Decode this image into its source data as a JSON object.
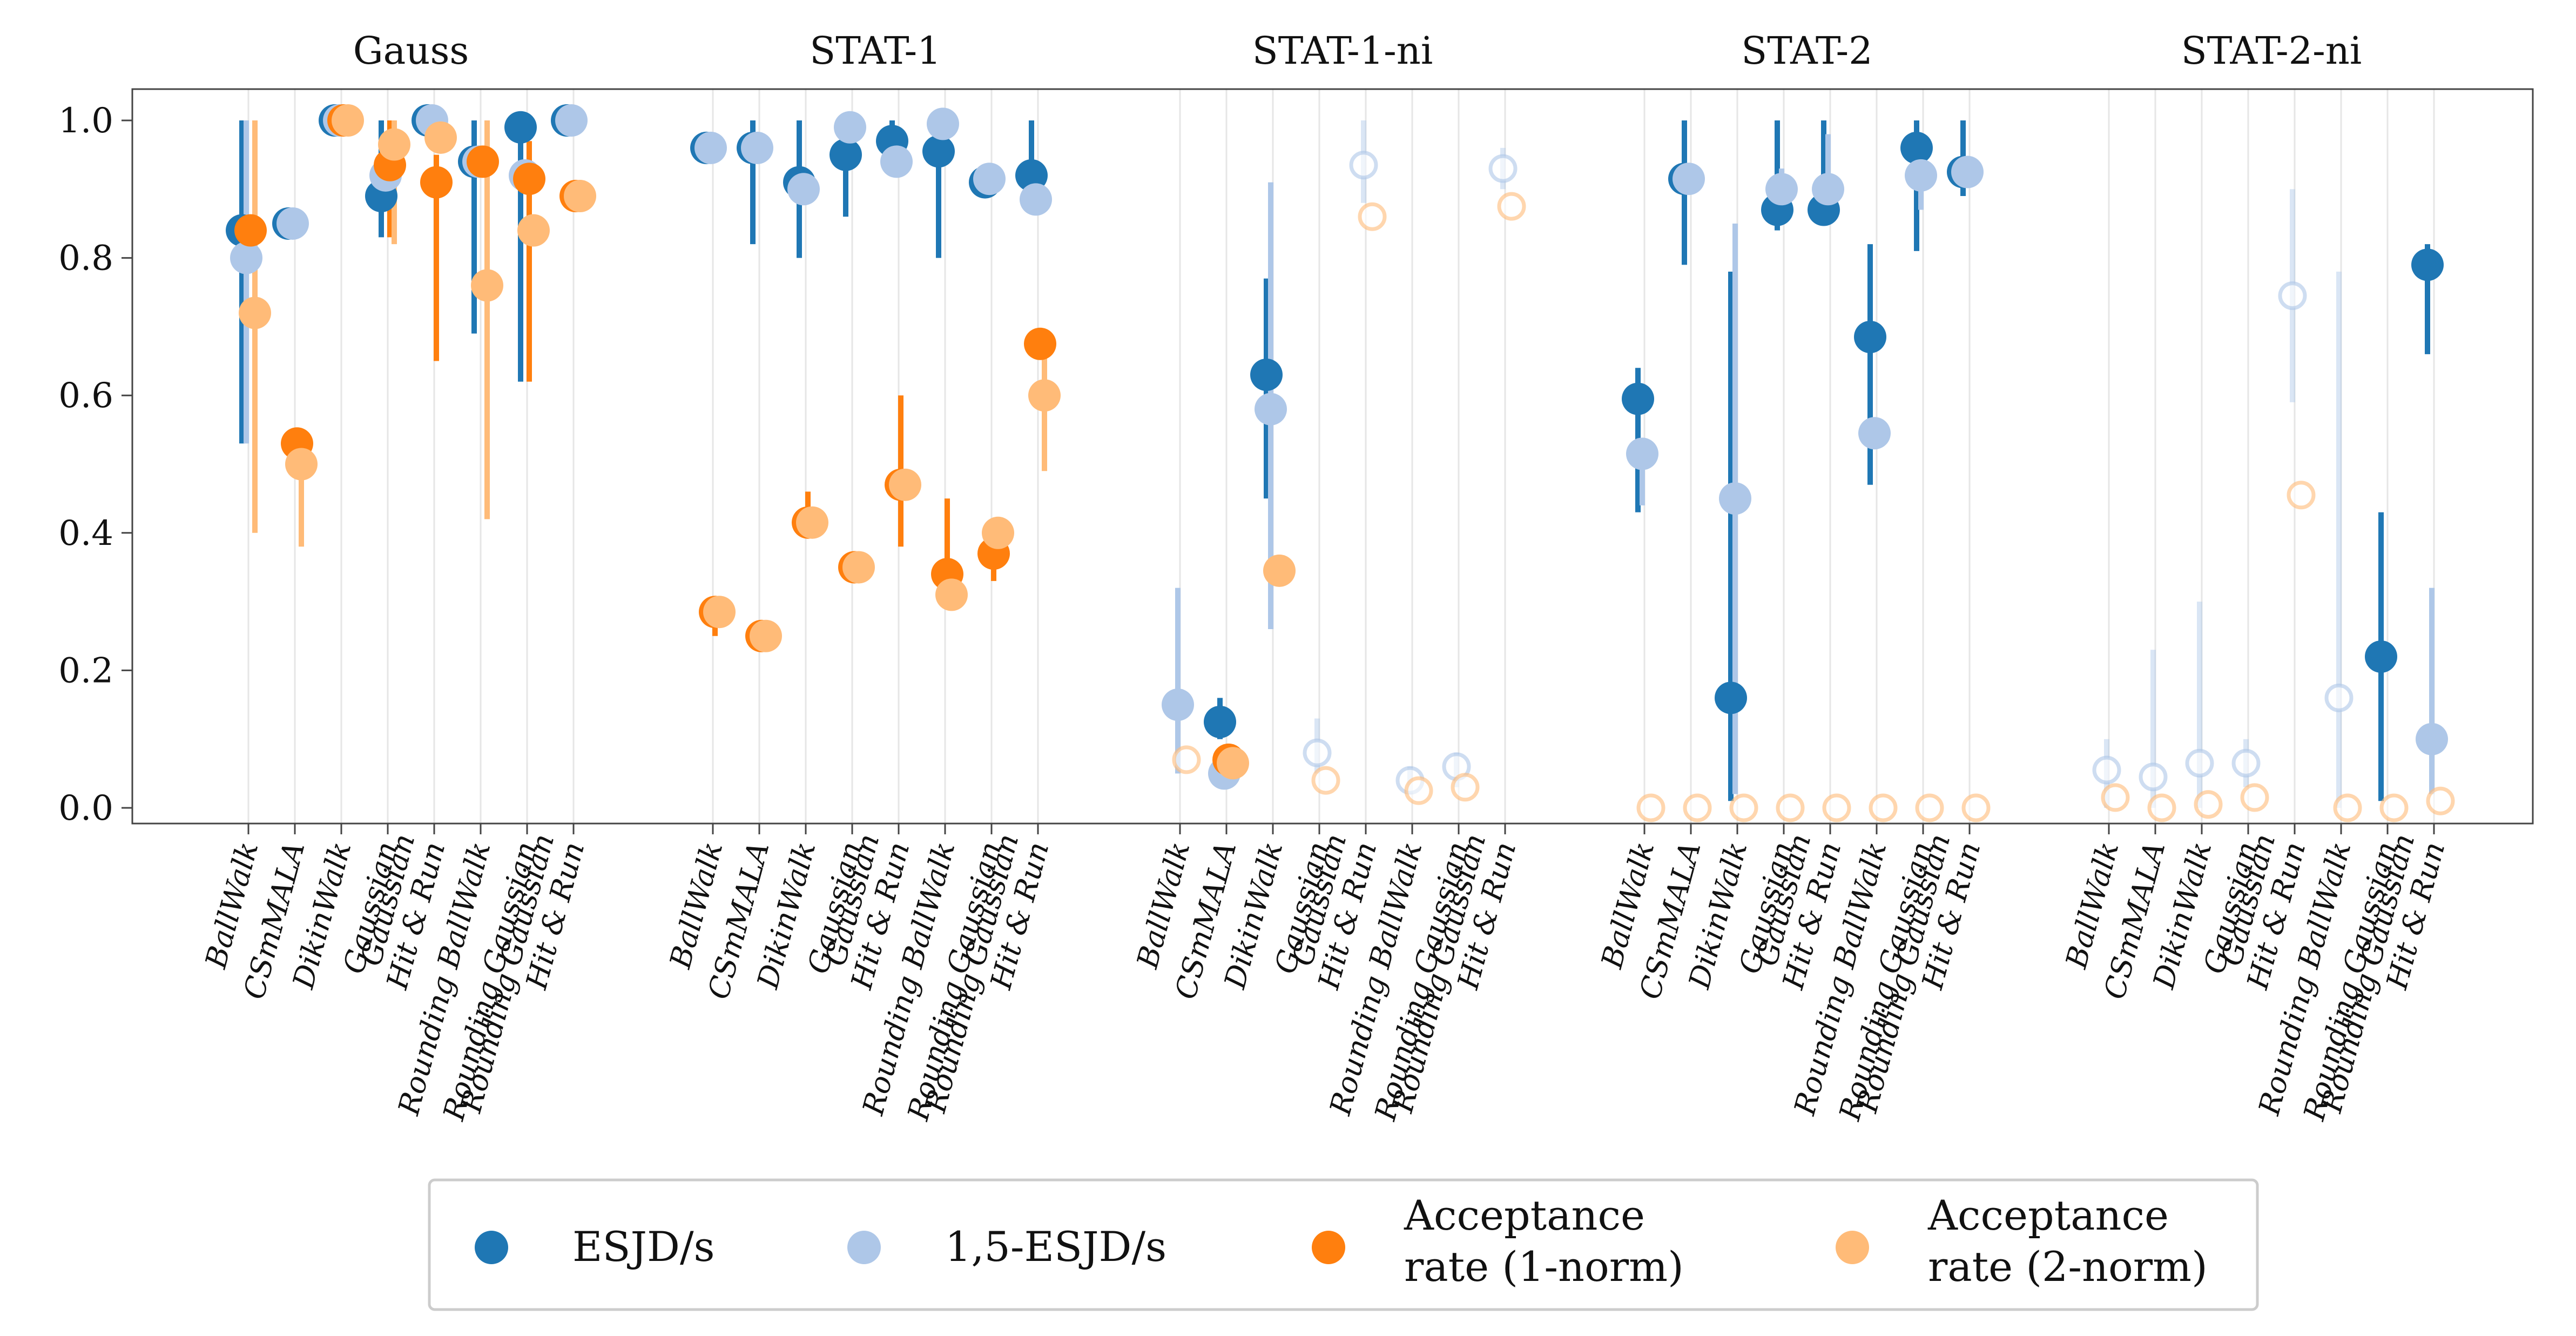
{
  "chart_data": {
    "type": "scatter",
    "ylim": [
      0,
      1.05
    ],
    "yticks": [
      "0.0",
      "0.2",
      "0.4",
      "0.6",
      "0.8",
      "1.0"
    ],
    "ytick_values": [
      0,
      0.2,
      0.4,
      0.6,
      0.8,
      1.0
    ],
    "grid": "vertical lines at each category",
    "groups": [
      "Gauss",
      "STAT-1",
      "STAT-1-ni",
      "STAT-2",
      "STAT-2-ni"
    ],
    "categories": [
      "BallWalk",
      "CSmMALA",
      "DikinWalk",
      "Gaussian",
      "Gaussian\nHit & Run",
      "Rounding BallWalk",
      "Rounding Gaussian",
      "Rounding Gaussian\nHit & Run"
    ],
    "series": [
      {
        "name": "ESJD/s",
        "color": "#1f77b4",
        "values": {
          "Gauss": [
            0.84,
            0.85,
            1.0,
            0.89,
            1.0,
            0.94,
            0.99,
            1.0
          ],
          "STAT-1": [
            0.96,
            0.96,
            0.91,
            0.95,
            0.97,
            0.955,
            0.91,
            0.92
          ],
          "STAT-1-ni": [
            null,
            0.125,
            0.63,
            null,
            null,
            null,
            null,
            null
          ],
          "STAT-2": [
            0.595,
            0.915,
            0.16,
            0.87,
            0.87,
            0.685,
            0.96,
            0.925
          ],
          "STAT-2-ni": [
            null,
            null,
            null,
            null,
            null,
            null,
            0.22,
            0.79
          ]
        },
        "ranges": {
          "Gauss": [
            [
              0.53,
              1.0
            ],
            null,
            null,
            [
              0.83,
              1.0
            ],
            null,
            [
              0.69,
              1.0
            ],
            [
              0.62,
              1.0
            ],
            null
          ],
          "STAT-1": [
            null,
            [
              0.82,
              1.0
            ],
            [
              0.8,
              1.0
            ],
            [
              0.86,
              1.0
            ],
            [
              0.92,
              1.0
            ],
            [
              0.8,
              1.0
            ],
            null,
            [
              0.88,
              1.0
            ]
          ],
          "STAT-1-ni": [
            null,
            [
              0.1,
              0.16
            ],
            [
              0.45,
              0.77
            ],
            null,
            null,
            null,
            null,
            null
          ],
          "STAT-2": [
            [
              0.43,
              0.64
            ],
            [
              0.79,
              1.0
            ],
            [
              0.01,
              0.78
            ],
            [
              0.84,
              1.0
            ],
            [
              0.85,
              1.0
            ],
            [
              0.47,
              0.82
            ],
            [
              0.81,
              1.0
            ],
            [
              0.89,
              1.0
            ]
          ],
          "STAT-2-ni": [
            null,
            null,
            null,
            null,
            null,
            null,
            [
              0.01,
              0.43
            ],
            [
              0.66,
              0.82
            ]
          ]
        }
      },
      {
        "name": "1,5-ESJD/s",
        "color": "#aec7e8",
        "values": {
          "Gauss": [
            0.8,
            0.85,
            1.0,
            0.92,
            1.0,
            0.94,
            0.92,
            1.0
          ],
          "STAT-1": [
            0.96,
            0.96,
            0.9,
            0.99,
            0.94,
            0.995,
            0.915,
            0.885
          ],
          "STAT-1-ni": [
            0.15,
            0.05,
            0.58,
            0.08,
            0.935,
            0.04,
            0.06,
            0.93
          ],
          "STAT-2": [
            0.515,
            0.915,
            0.45,
            0.9,
            0.9,
            0.545,
            0.92,
            0.925
          ],
          "STAT-2-ni": [
            0.055,
            0.045,
            0.065,
            0.065,
            0.745,
            0.16,
            null,
            0.1
          ]
        },
        "hollow": {
          "STAT-1-ni": [
            false,
            false,
            false,
            true,
            true,
            true,
            true,
            true
          ],
          "STAT-2-ni": [
            true,
            true,
            true,
            true,
            true,
            true,
            true,
            false
          ]
        },
        "ranges": {
          "Gauss": [
            [
              0.53,
              1.0
            ],
            null,
            null,
            null,
            null,
            null,
            null,
            null
          ],
          "STAT-1-ni": [
            [
              0.05,
              0.32
            ],
            null,
            [
              0.26,
              0.91
            ],
            [
              0.05,
              0.13
            ],
            [
              0.88,
              1.0
            ],
            [
              0.02,
              0.06
            ],
            [
              0.03,
              0.08
            ],
            [
              0.9,
              0.96
            ]
          ],
          "STAT-2": [
            [
              0.44,
              0.53
            ],
            null,
            [
              0.02,
              0.85
            ],
            [
              0.87,
              0.93
            ],
            [
              0.86,
              0.98
            ],
            null,
            [
              0.87,
              0.97
            ],
            null
          ],
          "STAT-2-ni": [
            [
              0.0,
              0.1
            ],
            [
              0.0,
              0.23
            ],
            [
              0.0,
              0.3
            ],
            [
              0.03,
              0.1
            ],
            [
              0.59,
              0.9
            ],
            [
              0.0,
              0.78
            ],
            null,
            [
              0.02,
              0.32
            ]
          ]
        }
      },
      {
        "name": "Acceptance rate (1-norm)",
        "color": "#ff7f0e",
        "values": {
          "Gauss": [
            0.84,
            0.53,
            1.0,
            0.935,
            0.91,
            0.94,
            0.915,
            0.89
          ],
          "STAT-1": [
            0.285,
            0.25,
            0.415,
            0.35,
            0.47,
            0.34,
            0.37,
            0.675
          ],
          "STAT-1-ni": [
            null,
            0.07,
            null,
            null,
            null,
            null,
            null,
            null
          ],
          "STAT-2": [],
          "STAT-2-ni": []
        },
        "ranges": {
          "Gauss": [
            null,
            null,
            null,
            [
              0.83,
              1.0
            ],
            [
              0.65,
              0.95
            ],
            null,
            [
              0.62,
              0.97
            ],
            null
          ],
          "STAT-1": [
            [
              0.25,
              0.3
            ],
            null,
            [
              0.4,
              0.46
            ],
            null,
            [
              0.38,
              0.6
            ],
            [
              0.32,
              0.45
            ],
            [
              0.33,
              0.4
            ],
            null
          ]
        }
      },
      {
        "name": "Acceptance rate (2-norm)",
        "color": "#ffbb78",
        "values": {
          "Gauss": [
            0.72,
            0.5,
            1.0,
            0.965,
            0.975,
            0.76,
            0.84,
            0.89
          ],
          "STAT-1": [
            0.285,
            0.25,
            0.415,
            0.35,
            0.47,
            0.31,
            0.4,
            0.6
          ],
          "STAT-1-ni": [
            0.07,
            0.065,
            0.345,
            0.04,
            0.86,
            0.025,
            0.03,
            0.875
          ],
          "STAT-2": [
            0.0,
            0.0,
            0.0,
            0.0,
            0.0,
            0.0,
            0.0,
            0.0
          ],
          "STAT-2-ni": [
            0.015,
            0.0,
            0.005,
            0.015,
            0.455,
            0.0,
            0.0,
            0.01
          ]
        },
        "hollow": {
          "STAT-1-ni": [
            true,
            false,
            false,
            true,
            true,
            true,
            true,
            true
          ],
          "STAT-2": [
            true,
            true,
            true,
            true,
            true,
            true,
            true,
            true
          ],
          "STAT-2-ni": [
            true,
            true,
            true,
            true,
            true,
            true,
            true,
            true
          ]
        },
        "ranges": {
          "Gauss": [
            [
              0.4,
              1.0
            ],
            [
              0.38,
              0.55
            ],
            null,
            [
              0.82,
              1.0
            ],
            null,
            [
              0.42,
              1.0
            ],
            null,
            null
          ],
          "STAT-1": [
            null,
            null,
            null,
            null,
            null,
            null,
            null,
            [
              0.49,
              0.68
            ]
          ]
        }
      }
    ],
    "legend": {
      "placement": "bottom-center",
      "entries": [
        {
          "label_lines": [
            "ESJD/s"
          ],
          "color": "#1f77b4"
        },
        {
          "label_lines": [
            "1,5-ESJD/s"
          ],
          "color": "#aec7e8"
        },
        {
          "label_lines": [
            "Acceptance",
            "rate (1-norm)"
          ],
          "color": "#ff7f0e"
        },
        {
          "label_lines": [
            "Acceptance",
            "rate (2-norm)"
          ],
          "color": "#ffbb78"
        }
      ]
    }
  }
}
